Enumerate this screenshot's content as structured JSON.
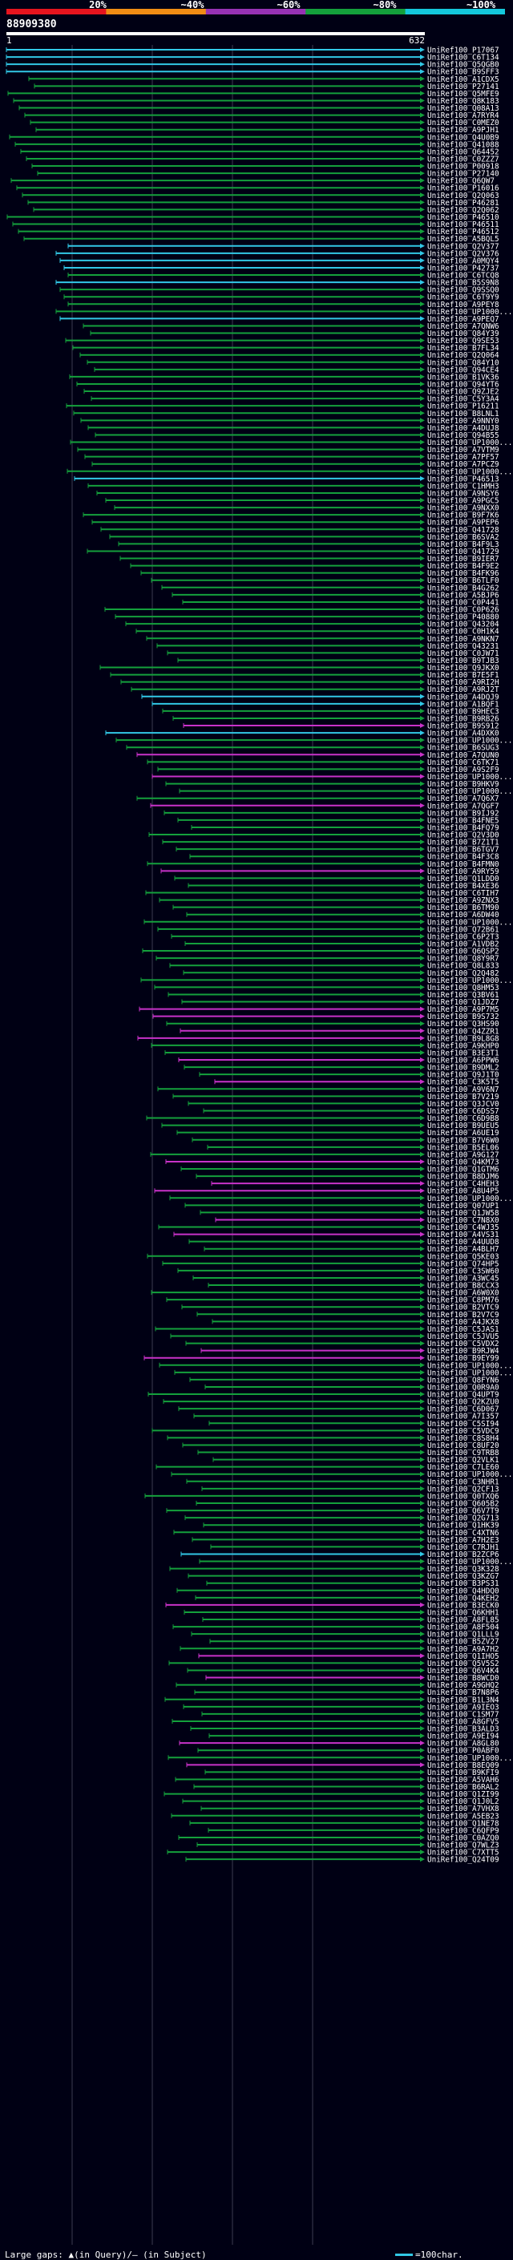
{
  "scale": {
    "labels": [
      "20%",
      "~40%",
      "~60%",
      "~80%",
      "~100%"
    ],
    "colors": [
      "#e6141e",
      "#f08c14",
      "#9632b4",
      "#14a03c",
      "#14c8dc"
    ]
  },
  "query": {
    "name": "88909380",
    "start": "1",
    "end": "632"
  },
  "hit_colors": {
    "green": "#14a03c",
    "cyan": "#32c8e6",
    "magenta": "#c832c8"
  },
  "hits": [
    {
      "id": "UniRef100_P17067",
      "c": "cyan"
    },
    {
      "id": "UniRef100_C6T134",
      "c": "cyan"
    },
    {
      "id": "UniRef100_Q5QGB0",
      "c": "cyan"
    },
    {
      "id": "UniRef100_B9SFF3",
      "c": "cyan"
    },
    {
      "id": "UniRef100_A1CDX5",
      "c": "green"
    },
    {
      "id": "UniRef100_P27141",
      "c": "green"
    },
    {
      "id": "UniRef100_Q5MFE9",
      "c": "green"
    },
    {
      "id": "UniRef100_Q8K183",
      "c": "green"
    },
    {
      "id": "UniRef100_Q08A13",
      "c": "green"
    },
    {
      "id": "UniRef100_A7RYR4",
      "c": "green"
    },
    {
      "id": "UniRef100_C0MEZ0",
      "c": "green"
    },
    {
      "id": "UniRef100_A9PJH1",
      "c": "green"
    },
    {
      "id": "UniRef100_Q4U0B9",
      "c": "green"
    },
    {
      "id": "UniRef100_Q41088",
      "c": "green"
    },
    {
      "id": "UniRef100_Q64452",
      "c": "green"
    },
    {
      "id": "UniRef100_C0ZZZ7",
      "c": "green"
    },
    {
      "id": "UniRef100_P00918",
      "c": "green"
    },
    {
      "id": "UniRef100_P27140",
      "c": "green"
    },
    {
      "id": "UniRef100_Q6QW7",
      "c": "green"
    },
    {
      "id": "UniRef100_P16016",
      "c": "green"
    },
    {
      "id": "UniRef100_Q2Q063",
      "c": "green"
    },
    {
      "id": "UniRef100_P46281",
      "c": "green"
    },
    {
      "id": "UniRef100_Q2Q062",
      "c": "green"
    },
    {
      "id": "UniRef100_P46510",
      "c": "green"
    },
    {
      "id": "UniRef100_P46511",
      "c": "green"
    },
    {
      "id": "UniRef100_P46512",
      "c": "green"
    },
    {
      "id": "UniRef100_A5BQL5",
      "c": "green"
    },
    {
      "id": "UniRef100_Q2V377",
      "c": "cyan"
    },
    {
      "id": "UniRef100_Q2V376",
      "c": "cyan"
    },
    {
      "id": "UniRef100_A0MQY4",
      "c": "cyan"
    },
    {
      "id": "UniRef100_P42737",
      "c": "cyan"
    },
    {
      "id": "UniRef100_C6TCQ8",
      "c": "green"
    },
    {
      "id": "UniRef100_B5S9N8",
      "c": "cyan"
    },
    {
      "id": "UniRef100_Q9SSQ0",
      "c": "green"
    },
    {
      "id": "UniRef100_C6T9Y9",
      "c": "green"
    },
    {
      "id": "UniRef100_A9PEY8",
      "c": "green"
    },
    {
      "id": "UniRef100_UP1000...",
      "c": "green"
    },
    {
      "id": "UniRef100_A9PEQ7",
      "c": "cyan"
    },
    {
      "id": "UniRef100_A7QNW6",
      "c": "green"
    },
    {
      "id": "UniRef100_Q84Y39",
      "c": "green"
    },
    {
      "id": "UniRef100_Q9SE53",
      "c": "green"
    },
    {
      "id": "UniRef100_B7FL34",
      "c": "green"
    },
    {
      "id": "UniRef100_Q2Q064",
      "c": "green"
    },
    {
      "id": "UniRef100_Q84Y10",
      "c": "green"
    },
    {
      "id": "UniRef100_Q94CE4",
      "c": "green"
    },
    {
      "id": "UniRef100_B1VK36",
      "c": "green"
    },
    {
      "id": "UniRef100_Q94YT6",
      "c": "green"
    },
    {
      "id": "UniRef100_Q9ZJE2",
      "c": "green"
    },
    {
      "id": "UniRef100_C5Y3A4",
      "c": "green"
    },
    {
      "id": "UniRef100_P16211",
      "c": "green"
    },
    {
      "id": "UniRef100_B8LNL1",
      "c": "green"
    },
    {
      "id": "UniRef100_A9NNY0",
      "c": "green"
    },
    {
      "id": "UniRef100_A4DUJ8",
      "c": "green"
    },
    {
      "id": "UniRef100_Q94B55",
      "c": "green"
    },
    {
      "id": "UniRef100_UP1000...",
      "c": "green"
    },
    {
      "id": "UniRef100_A7VTM9",
      "c": "green"
    },
    {
      "id": "UniRef100_A7PF57",
      "c": "green"
    },
    {
      "id": "UniRef100_A7PCZ9",
      "c": "green"
    },
    {
      "id": "UniRef100_UP1000...",
      "c": "green"
    },
    {
      "id": "UniRef100_P46513",
      "c": "cyan"
    },
    {
      "id": "UniRef100_C1HMH3",
      "c": "green"
    },
    {
      "id": "UniRef100_A9NSY6",
      "c": "green"
    },
    {
      "id": "UniRef100_A9PGC5",
      "c": "green"
    },
    {
      "id": "UniRef100_A9NXX0",
      "c": "green"
    },
    {
      "id": "UniRef100_B9F7K6",
      "c": "green"
    },
    {
      "id": "UniRef100_A9PEP6",
      "c": "green"
    },
    {
      "id": "UniRef100_Q41728",
      "c": "green"
    },
    {
      "id": "UniRef100_B6SVA2",
      "c": "green"
    },
    {
      "id": "UniRef100_B4F9L3",
      "c": "green"
    },
    {
      "id": "UniRef100_Q41729",
      "c": "green"
    },
    {
      "id": "UniRef100_B9IER7",
      "c": "green"
    },
    {
      "id": "UniRef100_B4F9E2",
      "c": "green"
    },
    {
      "id": "UniRef100_B4FK96",
      "c": "green"
    },
    {
      "id": "UniRef100_B6TLF0",
      "c": "green"
    },
    {
      "id": "UniRef100_B4G262",
      "c": "green"
    },
    {
      "id": "UniRef100_A5BJP6",
      "c": "green"
    },
    {
      "id": "UniRef100_C0P441",
      "c": "green"
    },
    {
      "id": "UniRef100_C0P626",
      "c": "green"
    },
    {
      "id": "UniRef100_P40880",
      "c": "green"
    },
    {
      "id": "UniRef100_Q43204",
      "c": "green"
    },
    {
      "id": "UniRef100_C0H1K4",
      "c": "green"
    },
    {
      "id": "UniRef100_A9NKN7",
      "c": "green"
    },
    {
      "id": "UniRef100_Q43231",
      "c": "green"
    },
    {
      "id": "UniRef100_C0JW71",
      "c": "green"
    },
    {
      "id": "UniRef100_B9TJB3",
      "c": "green"
    },
    {
      "id": "UniRef100_Q9JKX0",
      "c": "green"
    },
    {
      "id": "UniRef100_B7E5F1",
      "c": "green"
    },
    {
      "id": "UniRef100_A9RI2H",
      "c": "green"
    },
    {
      "id": "UniRef100_A9RJ2T",
      "c": "green"
    },
    {
      "id": "UniRef100_A4DQJ9",
      "c": "cyan"
    },
    {
      "id": "UniRef100_A1BQF1",
      "c": "cyan"
    },
    {
      "id": "UniRef100_B9HEC3",
      "c": "green"
    },
    {
      "id": "UniRef100_B9RB26",
      "c": "green"
    },
    {
      "id": "UniRef100_B9S912",
      "c": "magenta"
    },
    {
      "id": "UniRef100_A4DXK0",
      "c": "cyan"
    },
    {
      "id": "UniRef100_UP1000...",
      "c": "green"
    },
    {
      "id": "UniRef100_B6SUG3",
      "c": "green"
    },
    {
      "id": "UniRef100_A7QUN0",
      "c": "magenta"
    },
    {
      "id": "UniRef100_C6TK71",
      "c": "green"
    },
    {
      "id": "UniRef100_A9S2F9",
      "c": "green"
    },
    {
      "id": "UniRef100_UP1000...",
      "c": "magenta"
    },
    {
      "id": "UniRef100_B9HKV9",
      "c": "green"
    },
    {
      "id": "UniRef100_UP1000...",
      "c": "green"
    },
    {
      "id": "UniRef100_A7Q6X7",
      "c": "green"
    },
    {
      "id": "UniRef100_A7QGF7",
      "c": "magenta"
    },
    {
      "id": "UniRef100_B9IJ92",
      "c": "green"
    },
    {
      "id": "UniRef100_B4FNE5",
      "c": "green"
    },
    {
      "id": "UniRef100_B4FQ79",
      "c": "green"
    },
    {
      "id": "UniRef100_Q2V3D0",
      "c": "green"
    },
    {
      "id": "UniRef100_B7Z1T1",
      "c": "green"
    },
    {
      "id": "UniRef100_B6TGV7",
      "c": "green"
    },
    {
      "id": "UniRef100_B4F3C8",
      "c": "green"
    },
    {
      "id": "UniRef100_B4FMN0",
      "c": "green"
    },
    {
      "id": "UniRef100_A9RY59",
      "c": "magenta"
    },
    {
      "id": "UniRef100_Q1LDD0",
      "c": "green"
    },
    {
      "id": "UniRef100_B4XE36",
      "c": "green"
    },
    {
      "id": "UniRef100_C6TIH7",
      "c": "green"
    },
    {
      "id": "UniRef100_A9ZNX3",
      "c": "green"
    },
    {
      "id": "UniRef100_B6TM90",
      "c": "green"
    },
    {
      "id": "UniRef100_A6DW40",
      "c": "green"
    },
    {
      "id": "UniRef100_UP1000...",
      "c": "green"
    },
    {
      "id": "UniRef100_Q72B61",
      "c": "green"
    },
    {
      "id": "UniRef100_C6P2T3",
      "c": "green"
    },
    {
      "id": "UniRef100_A1VDB2",
      "c": "green"
    },
    {
      "id": "UniRef100_Q6QSP2",
      "c": "green"
    },
    {
      "id": "UniRef100_Q8Y9R7",
      "c": "green"
    },
    {
      "id": "UniRef100_Q8L833",
      "c": "green"
    },
    {
      "id": "UniRef100_Q2Q482",
      "c": "green"
    },
    {
      "id": "UniRef100_UP1000...",
      "c": "green"
    },
    {
      "id": "UniRef100_Q8HM53",
      "c": "green"
    },
    {
      "id": "UniRef100_Q3BV61",
      "c": "green"
    },
    {
      "id": "UniRef100_Q1JDZ7",
      "c": "green"
    },
    {
      "id": "UniRef100_A9P7M5",
      "c": "magenta"
    },
    {
      "id": "UniRef100_B9S732",
      "c": "magenta"
    },
    {
      "id": "UniRef100_Q3HS90",
      "c": "green"
    },
    {
      "id": "UniRef100_Q4ZZR1",
      "c": "magenta"
    },
    {
      "id": "UniRef100_B9L8G8",
      "c": "magenta"
    },
    {
      "id": "UniRef100_A9KHP0",
      "c": "green"
    },
    {
      "id": "UniRef100_B3E3T1",
      "c": "green"
    },
    {
      "id": "UniRef100_A6PPW6",
      "c": "magenta"
    },
    {
      "id": "UniRef100_B9DML2",
      "c": "green"
    },
    {
      "id": "UniRef100_Q9J1T0",
      "c": "green"
    },
    {
      "id": "UniRef100_C3K5T5",
      "c": "magenta"
    },
    {
      "id": "UniRef100_A9V6N7",
      "c": "green"
    },
    {
      "id": "UniRef100_B7V219",
      "c": "green"
    },
    {
      "id": "UniRef100_Q3JCV0",
      "c": "green"
    },
    {
      "id": "UniRef100_C6DSS7",
      "c": "green"
    },
    {
      "id": "UniRef100_C6D9B8",
      "c": "green"
    },
    {
      "id": "UniRef100_B9UEU5",
      "c": "green"
    },
    {
      "id": "UniRef100_A6UE19",
      "c": "green"
    },
    {
      "id": "UniRef100_B7V6W0",
      "c": "green"
    },
    {
      "id": "UniRef100_B5EL06",
      "c": "green"
    },
    {
      "id": "UniRef100_A9G127",
      "c": "green"
    },
    {
      "id": "UniRef100_Q4KM73",
      "c": "magenta"
    },
    {
      "id": "UniRef100_Q1GTM6",
      "c": "green"
    },
    {
      "id": "UniRef100_B8DJM6",
      "c": "green"
    },
    {
      "id": "UniRef100_C4HEH3",
      "c": "magenta"
    },
    {
      "id": "UniRef100_A8U4P5",
      "c": "magenta"
    },
    {
      "id": "UniRef100_UP1000...",
      "c": "green"
    },
    {
      "id": "UniRef100_Q07UP1",
      "c": "green"
    },
    {
      "id": "UniRef100_Q1JW58",
      "c": "green"
    },
    {
      "id": "UniRef100_C7N8X0",
      "c": "magenta"
    },
    {
      "id": "UniRef100_C4WJ35",
      "c": "green"
    },
    {
      "id": "UniRef100_A4VS31",
      "c": "magenta"
    },
    {
      "id": "UniRef100_A4UUD8",
      "c": "green"
    },
    {
      "id": "UniRef100_A4BLH7",
      "c": "green"
    },
    {
      "id": "UniRef100_Q5KE03",
      "c": "green"
    },
    {
      "id": "UniRef100_Q74HP5",
      "c": "green"
    },
    {
      "id": "UniRef100_C3SW60",
      "c": "green"
    },
    {
      "id": "UniRef100_A3WC45",
      "c": "green"
    },
    {
      "id": "UniRef100_B8CCX3",
      "c": "green"
    },
    {
      "id": "UniRef100_A6W0X0",
      "c": "green"
    },
    {
      "id": "UniRef100_C8PM76",
      "c": "green"
    },
    {
      "id": "UniRef100_B2VTC9",
      "c": "green"
    },
    {
      "id": "UniRef100_B2V7C9",
      "c": "green"
    },
    {
      "id": "UniRef100_A4JKX8",
      "c": "green"
    },
    {
      "id": "UniRef100_C5JAS1",
      "c": "green"
    },
    {
      "id": "UniRef100_C5JVU5",
      "c": "green"
    },
    {
      "id": "UniRef100_C5VDX2",
      "c": "green"
    },
    {
      "id": "UniRef100_B9RJW4",
      "c": "magenta"
    },
    {
      "id": "UniRef100_B9EY99",
      "c": "magenta"
    },
    {
      "id": "UniRef100_UP1000...",
      "c": "green"
    },
    {
      "id": "UniRef100_UP1000...",
      "c": "green"
    },
    {
      "id": "UniRef100_Q8FYN6",
      "c": "green"
    },
    {
      "id": "UniRef100_Q0R9A0",
      "c": "green"
    },
    {
      "id": "UniRef100_Q4UPT9",
      "c": "green"
    },
    {
      "id": "UniRef100_Q2KZU0",
      "c": "green"
    },
    {
      "id": "UniRef100_C6D067",
      "c": "green"
    },
    {
      "id": "UniRef100_A7I357",
      "c": "green"
    },
    {
      "id": "UniRef100_C5SI94",
      "c": "green"
    },
    {
      "id": "UniRef100_C5VDC9",
      "c": "green"
    },
    {
      "id": "UniRef100_C8S8H4",
      "c": "green"
    },
    {
      "id": "UniRef100_C8UF20",
      "c": "green"
    },
    {
      "id": "UniRef100_C9TRB8",
      "c": "green"
    },
    {
      "id": "UniRef100_Q2VLK1",
      "c": "green"
    },
    {
      "id": "UniRef100_C7LE60",
      "c": "green"
    },
    {
      "id": "UniRef100_UP1000...",
      "c": "green"
    },
    {
      "id": "UniRef100_C3NHR1",
      "c": "green"
    },
    {
      "id": "UniRef100_Q2CF13",
      "c": "green"
    },
    {
      "id": "UniRef100_Q0TXQ6",
      "c": "green"
    },
    {
      "id": "UniRef100_Q605B2",
      "c": "green"
    },
    {
      "id": "UniRef100_Q6V7T9",
      "c": "green"
    },
    {
      "id": "UniRef100_Q2G713",
      "c": "green"
    },
    {
      "id": "UniRef100_Q1HK39",
      "c": "green"
    },
    {
      "id": "UniRef100_C4XTN6",
      "c": "green"
    },
    {
      "id": "UniRef100_A7H2E3",
      "c": "green"
    },
    {
      "id": "UniRef100_C7RJH1",
      "c": "green"
    },
    {
      "id": "UniRef100_B2ZCP6",
      "c": "cyan"
    },
    {
      "id": "UniRef100_UP1000...",
      "c": "green"
    },
    {
      "id": "UniRef100_Q3K328",
      "c": "green"
    },
    {
      "id": "UniRef100_Q3KZG7",
      "c": "green"
    },
    {
      "id": "UniRef100_B3PS31",
      "c": "green"
    },
    {
      "id": "UniRef100_Q4HDQ0",
      "c": "green"
    },
    {
      "id": "UniRef100_Q4KEH2",
      "c": "green"
    },
    {
      "id": "UniRef100_B3ECK0",
      "c": "magenta"
    },
    {
      "id": "UniRef100_Q6KHH1",
      "c": "green"
    },
    {
      "id": "UniRef100_A8FL85",
      "c": "green"
    },
    {
      "id": "UniRef100_A8F504",
      "c": "green"
    },
    {
      "id": "UniRef100_Q1LLL9",
      "c": "green"
    },
    {
      "id": "UniRef100_B5ZV27",
      "c": "green"
    },
    {
      "id": "UniRef100_A9A7H2",
      "c": "green"
    },
    {
      "id": "UniRef100_Q1IHO5",
      "c": "magenta"
    },
    {
      "id": "UniRef100_Q5V5S2",
      "c": "green"
    },
    {
      "id": "UniRef100_Q6V4K4",
      "c": "green"
    },
    {
      "id": "UniRef100_B8WCD0",
      "c": "magenta"
    },
    {
      "id": "UniRef100_A9GHQ2",
      "c": "green"
    },
    {
      "id": "UniRef100_B7N8P6",
      "c": "green"
    },
    {
      "id": "UniRef100_B1L3N4",
      "c": "green"
    },
    {
      "id": "UniRef100_A9IEO3",
      "c": "green"
    },
    {
      "id": "UniRef100_C1SM77",
      "c": "green"
    },
    {
      "id": "UniRef100_A8GFV5",
      "c": "green"
    },
    {
      "id": "UniRef100_B3ALD3",
      "c": "green"
    },
    {
      "id": "UniRef100_A9EI94",
      "c": "green"
    },
    {
      "id": "UniRef100_A8GL80",
      "c": "magenta"
    },
    {
      "id": "UniRef100_P0ABF0",
      "c": "green"
    },
    {
      "id": "UniRef100_UP1000...",
      "c": "green"
    },
    {
      "id": "UniRef100_B8EQ09",
      "c": "magenta"
    },
    {
      "id": "UniRef100_B9KFI9",
      "c": "green"
    },
    {
      "id": "UniRef100_A5VAH6",
      "c": "green"
    },
    {
      "id": "UniRef100_B6RAL2",
      "c": "green"
    },
    {
      "id": "UniRef100_Q1ZI99",
      "c": "green"
    },
    {
      "id": "UniRef100_Q1J0L2",
      "c": "green"
    },
    {
      "id": "UniRef100_A7VHX8",
      "c": "green"
    },
    {
      "id": "UniRef100_A5EB23",
      "c": "green"
    },
    {
      "id": "UniRef100_Q1NE78",
      "c": "green"
    },
    {
      "id": "UniRef100_C6QFP9",
      "c": "green"
    },
    {
      "id": "UniRef100_C0AZQ0",
      "c": "green"
    },
    {
      "id": "UniRef100_Q7WLZ3",
      "c": "green"
    },
    {
      "id": "UniRef100_C7XTT5",
      "c": "green"
    },
    {
      "id": "UniRef100_Q24T09",
      "c": "green"
    }
  ],
  "footer": {
    "left": "Large gaps: ▲(in Query)/– (in Subject)",
    "right": "=100char."
  }
}
